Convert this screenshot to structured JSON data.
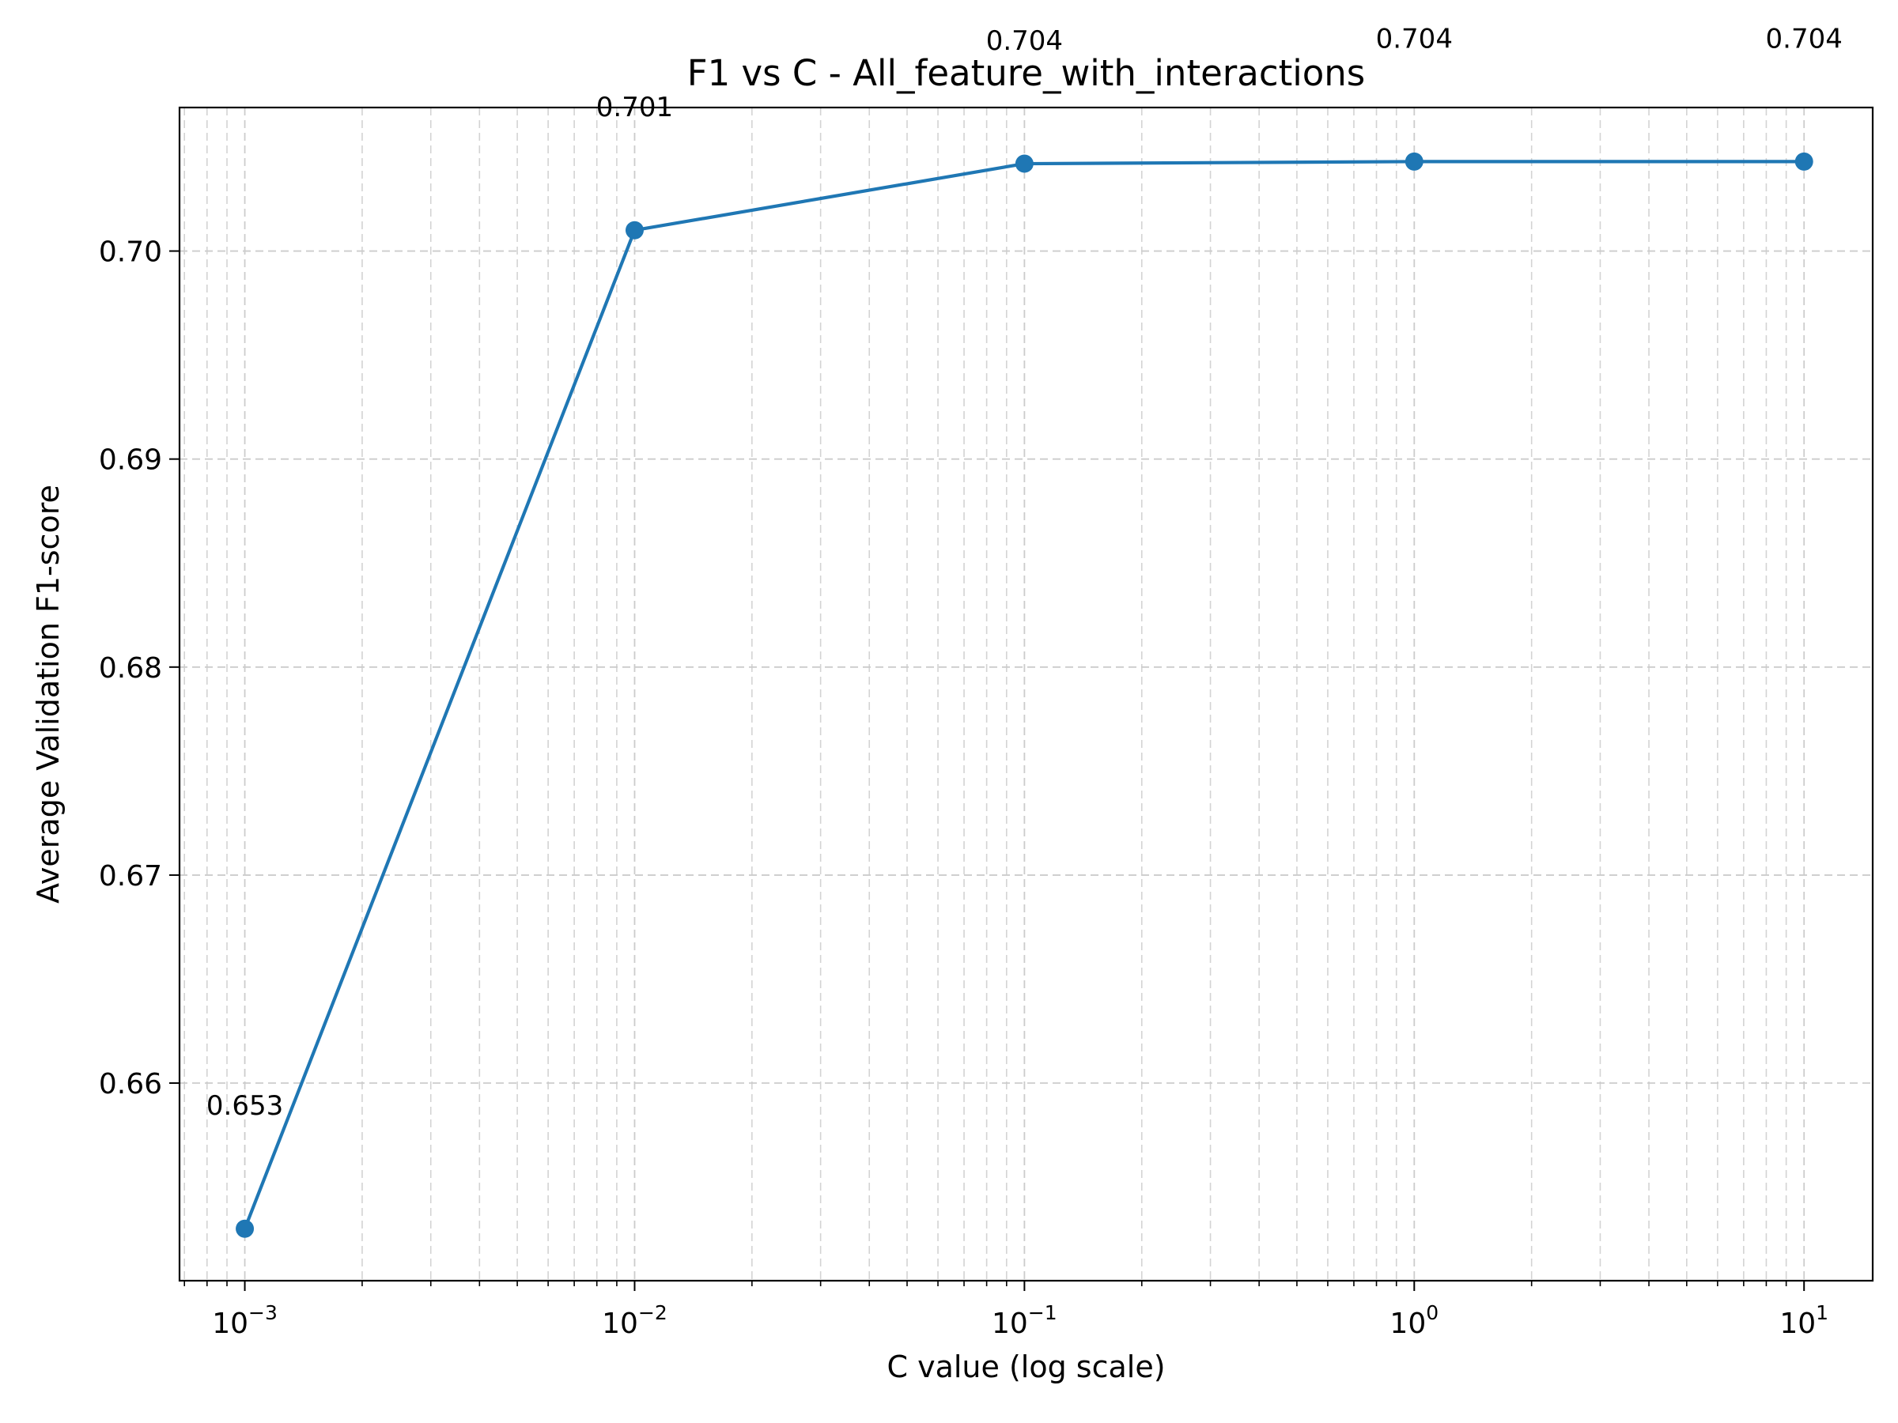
{
  "chart_data": {
    "type": "line",
    "title": "F1 vs C - All_feature_with_interactions",
    "xlabel": "C value (log scale)",
    "ylabel": "Average Validation F1-score",
    "x_scale": "log",
    "x": [
      0.001,
      0.01,
      0.1,
      1,
      10
    ],
    "series": [
      {
        "values": [
          0.653,
          0.701,
          0.7042,
          0.7043,
          0.7043
        ],
        "labels": [
          "0.653",
          "0.701",
          "0.704",
          "0.704",
          "0.704"
        ],
        "color": "#1f77b4",
        "marker": "circle"
      }
    ],
    "xlim": [
      0.00068,
      15.0
    ],
    "ylim": [
      0.6505,
      0.7069
    ],
    "x_ticks": [
      {
        "value": 0.001,
        "base": "10",
        "exp": "−3"
      },
      {
        "value": 0.01,
        "base": "10",
        "exp": "−2"
      },
      {
        "value": 0.1,
        "base": "10",
        "exp": "−1"
      },
      {
        "value": 1,
        "base": "10",
        "exp": "0"
      },
      {
        "value": 10,
        "base": "10",
        "exp": "1"
      }
    ],
    "y_ticks": [
      {
        "value": 0.66,
        "label": "0.66"
      },
      {
        "value": 0.67,
        "label": "0.67"
      },
      {
        "value": 0.68,
        "label": "0.68"
      },
      {
        "value": 0.69,
        "label": "0.69"
      },
      {
        "value": 0.7,
        "label": "0.70"
      }
    ],
    "grid": true,
    "grid_minor": true,
    "grid_color": "#cccccc",
    "line_color": "#1f77b4"
  }
}
